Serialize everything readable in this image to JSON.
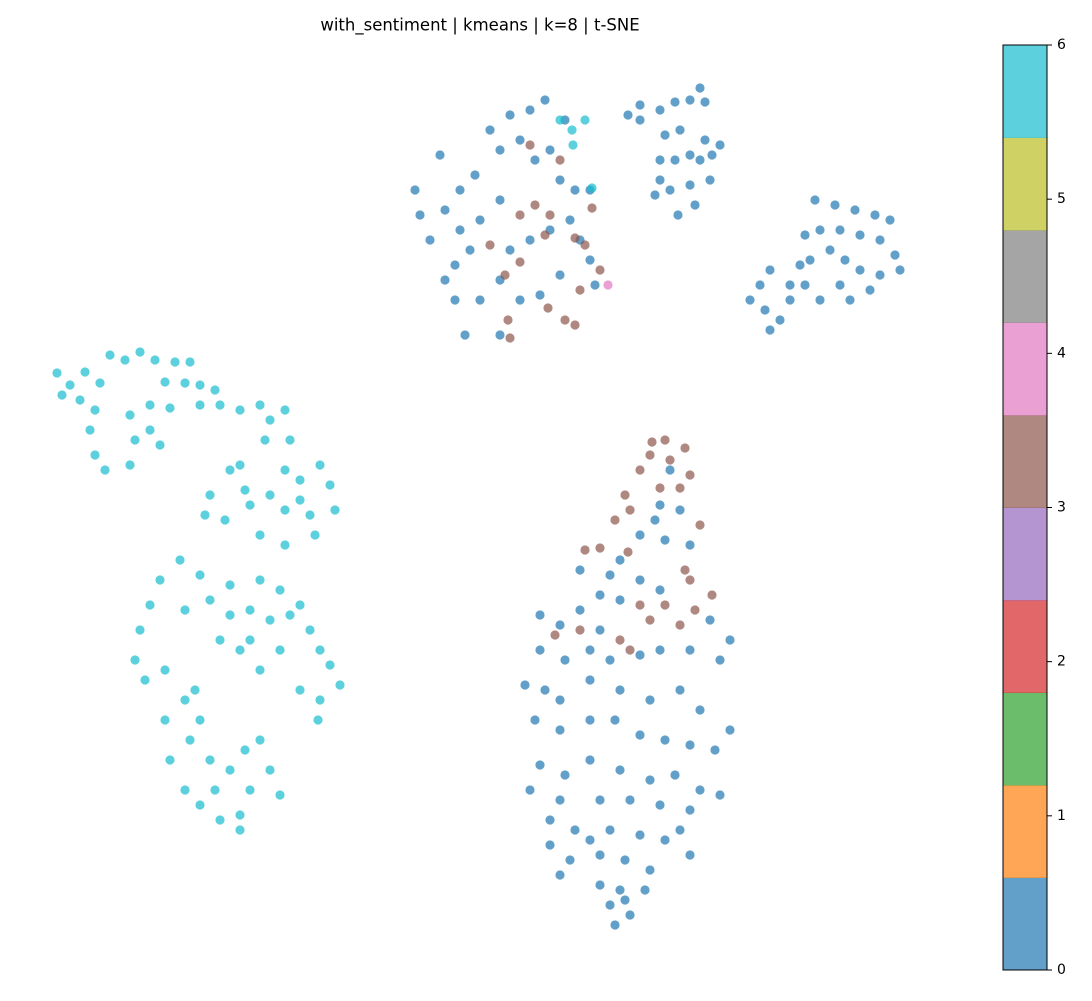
{
  "chart_data": {
    "type": "scatter",
    "title": "with_sentiment | kmeans | k=8 | t-SNE",
    "xlim": [
      30,
      950
    ],
    "ylim": [
      -950,
      -70
    ],
    "marker_alpha": 0.7,
    "colorbar": {
      "lim": [
        0,
        6
      ],
      "ticks": [
        0,
        1,
        2,
        3,
        4,
        5,
        6
      ],
      "colors": [
        "#1f77b4",
        "#ff7f0e",
        "#2ca02c",
        "#d62728",
        "#9467bd",
        "#8c564b",
        "#e377c2",
        "#7f7f7f",
        "#bcbd22",
        "#17becf"
      ]
    },
    "series": [
      {
        "c": 0,
        "x": [
          440,
          415,
          420,
          430,
          445,
          455,
          465,
          460,
          475,
          490,
          500,
          510,
          530,
          545,
          520,
          535,
          550,
          500,
          480,
          470,
          460,
          510,
          530,
          550,
          570,
          580,
          590,
          575,
          560,
          500,
          520,
          540,
          560,
          480,
          500,
          595,
          445,
          455,
          590,
          565,
          628,
          640,
          660,
          675,
          690,
          700,
          705,
          665,
          680,
          690,
          705,
          720,
          660,
          675,
          700,
          710,
          660,
          670,
          690,
          655,
          678,
          695,
          640,
          712,
          815,
          835,
          855,
          875,
          890,
          820,
          840,
          860,
          880,
          895,
          900,
          805,
          810,
          830,
          845,
          860,
          880,
          870,
          850,
          820,
          800,
          790,
          770,
          760,
          750,
          765,
          780,
          770,
          790,
          805,
          840,
          670,
          660,
          680,
          655,
          640,
          665,
          690,
          620,
          610,
          580,
          640,
          660,
          600,
          580,
          620,
          540,
          560,
          600,
          710,
          730,
          540,
          565,
          590,
          610,
          640,
          660,
          690,
          720,
          525,
          545,
          560,
          590,
          620,
          650,
          680,
          700,
          730,
          535,
          560,
          590,
          615,
          640,
          665,
          690,
          715,
          540,
          565,
          590,
          620,
          650,
          675,
          700,
          720,
          530,
          560,
          600,
          630,
          660,
          690,
          550,
          575,
          610,
          640,
          665,
          690,
          550,
          570,
          600,
          625,
          650,
          560,
          600,
          620,
          645,
          610,
          630,
          615,
          625,
          590,
          680
        ],
        "y": [
          -155,
          -190,
          -215,
          -240,
          -280,
          -300,
          -335,
          -190,
          -175,
          -130,
          -150,
          -115,
          -110,
          -100,
          -140,
          -160,
          -150,
          -200,
          -220,
          -250,
          -230,
          -250,
          -240,
          -230,
          -220,
          -240,
          -260,
          -190,
          -180,
          -335,
          -300,
          -295,
          -275,
          -300,
          -280,
          -285,
          -210,
          -265,
          -190,
          -120,
          -115,
          -105,
          -110,
          -102,
          -100,
          -88,
          -102,
          -135,
          -130,
          -155,
          -140,
          -145,
          -160,
          -160,
          -160,
          -180,
          -180,
          -190,
          -185,
          -195,
          -215,
          -205,
          -120,
          -155,
          -200,
          -205,
          -210,
          -215,
          -220,
          -230,
          -230,
          -235,
          -240,
          -255,
          -270,
          -235,
          -260,
          -250,
          -260,
          -270,
          -275,
          -290,
          -300,
          -300,
          -265,
          -285,
          -270,
          -285,
          -300,
          -310,
          -320,
          -330,
          -300,
          -285,
          -285,
          -470,
          -505,
          -510,
          -520,
          -535,
          -540,
          -545,
          -560,
          -575,
          -570,
          -580,
          -590,
          -595,
          -610,
          -600,
          -615,
          -625,
          -630,
          -620,
          -640,
          -650,
          -660,
          -650,
          -660,
          -655,
          -650,
          -650,
          -660,
          -685,
          -690,
          -700,
          -680,
          -690,
          -700,
          -690,
          -710,
          -730,
          -720,
          -730,
          -720,
          -720,
          -735,
          -740,
          -745,
          -750,
          -765,
          -775,
          -760,
          -770,
          -780,
          -775,
          -790,
          -795,
          -790,
          -800,
          -800,
          -800,
          -805,
          -810,
          -820,
          -830,
          -830,
          -835,
          -840,
          -855,
          -845,
          -860,
          -855,
          -860,
          -870,
          -875,
          -885,
          -890,
          -890,
          -905,
          -915,
          -925,
          -900,
          -840,
          -830
        ]
      },
      {
        "c": 3,
        "x": [
          535,
          520,
          550,
          560,
          490,
          505,
          520,
          545,
          575,
          585,
          600,
          580,
          565,
          575,
          508,
          510,
          548,
          592,
          530,
          652,
          665,
          685,
          650,
          670,
          690,
          640,
          660,
          680,
          625,
          615,
          630,
          700,
          600,
          585,
          628,
          685,
          690,
          712,
          665,
          640,
          695,
          680,
          555,
          580,
          630,
          620,
          650
        ],
        "y": [
          -205,
          -215,
          -215,
          -160,
          -245,
          -275,
          -262,
          -235,
          -238,
          -245,
          -270,
          -290,
          -320,
          -325,
          -320,
          -338,
          -308,
          -208,
          -145,
          -442,
          -440,
          -448,
          -455,
          -460,
          -475,
          -470,
          -488,
          -488,
          -495,
          -520,
          -510,
          -525,
          -548,
          -550,
          -552,
          -570,
          -580,
          -595,
          -605,
          -605,
          -610,
          -625,
          -635,
          -630,
          -650,
          -640,
          -620
        ]
      },
      {
        "c": 4,
        "x": [
          608
        ],
        "y": [
          -285
        ]
      },
      {
        "c": 6,
        "x": [
          560,
          572,
          585,
          573,
          592,
          57,
          70,
          85,
          100,
          62,
          80,
          95,
          110,
          125,
          140,
          155,
          175,
          190,
          165,
          185,
          200,
          215,
          150,
          170,
          200,
          220,
          130,
          150,
          160,
          135,
          90,
          95,
          105,
          130,
          240,
          260,
          270,
          285,
          290,
          265,
          240,
          245,
          210,
          205,
          225,
          250,
          270,
          285,
          300,
          320,
          330,
          335,
          310,
          285,
          260,
          285,
          315,
          230,
          300,
          180,
          160,
          200,
          230,
          260,
          280,
          150,
          140,
          135,
          145,
          165,
          185,
          210,
          230,
          250,
          270,
          290,
          300,
          310,
          320,
          330,
          340,
          300,
          320,
          280,
          260,
          240,
          220,
          250,
          165,
          185,
          200,
          190,
          170,
          185,
          200,
          215,
          230,
          245,
          260,
          270,
          280,
          240,
          220,
          240,
          210,
          250,
          318,
          195
        ],
        "y": [
          -120,
          -130,
          -120,
          -145,
          -188,
          -373,
          -385,
          -372,
          -383,
          -395,
          -400,
          -410,
          -355,
          -360,
          -352,
          -360,
          -362,
          -362,
          -382,
          -383,
          -385,
          -390,
          -405,
          -408,
          -405,
          -405,
          -415,
          -430,
          -445,
          -440,
          -430,
          -455,
          -470,
          -465,
          -410,
          -405,
          -420,
          -410,
          -440,
          -440,
          -465,
          -490,
          -495,
          -515,
          -520,
          -505,
          -495,
          -470,
          -480,
          -465,
          -485,
          -510,
          -515,
          -510,
          -535,
          -545,
          -535,
          -470,
          -500,
          -560,
          -580,
          -575,
          -585,
          -580,
          -590,
          -605,
          -630,
          -660,
          -680,
          -670,
          -610,
          -600,
          -615,
          -610,
          -620,
          -615,
          -605,
          -630,
          -650,
          -665,
          -685,
          -690,
          -700,
          -650,
          -670,
          -650,
          -640,
          -640,
          -720,
          -700,
          -720,
          -740,
          -760,
          -790,
          -805,
          -790,
          -770,
          -750,
          -740,
          -770,
          -795,
          -815,
          -820,
          -830,
          -760,
          -790,
          -720,
          -690
        ]
      }
    ]
  }
}
